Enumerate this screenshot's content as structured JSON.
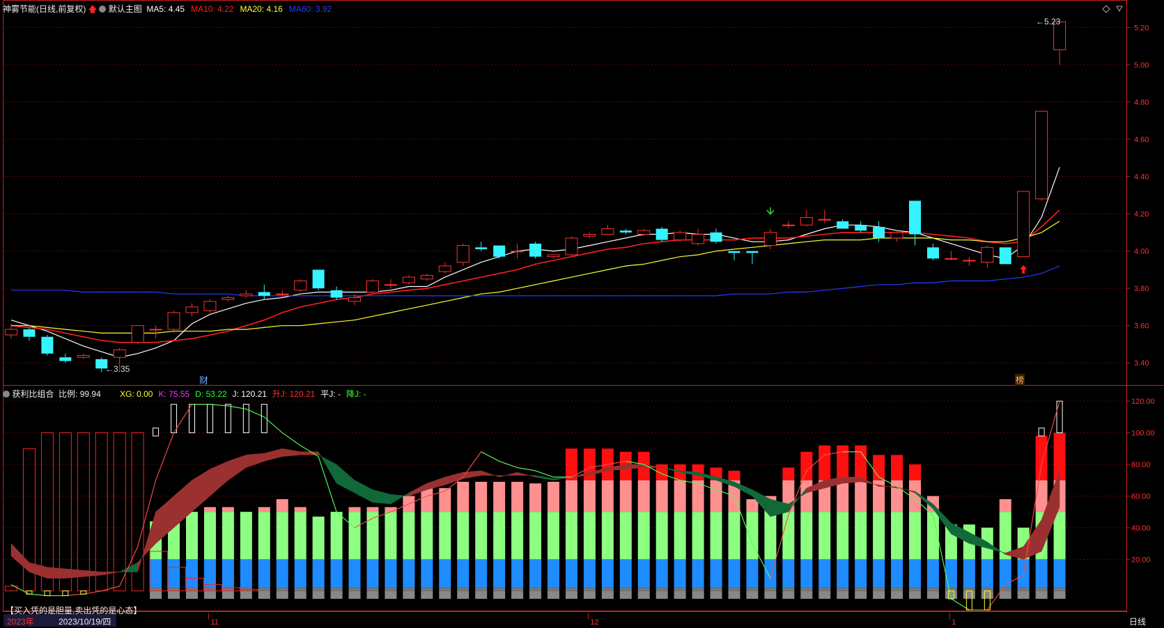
{
  "header": {
    "stock": "神雾节能",
    "period": "(日线,前复权)",
    "template": "默认主图",
    "ma": [
      {
        "label": "MA5:",
        "value": "4.45",
        "color": "#ffffff"
      },
      {
        "label": "MA10:",
        "value": "4.22",
        "color": "#ff2020"
      },
      {
        "label": "MA20:",
        "value": "4.16",
        "color": "#ffff30"
      },
      {
        "label": "MA60:",
        "value": "3.92",
        "color": "#2a3cff"
      }
    ]
  },
  "sub_header": {
    "title": "获利比组合",
    "ratio_label": "比例:",
    "ratio_value": "99.94",
    "items": [
      {
        "label": "XG:",
        "value": "0.00",
        "color": "#ffff30"
      },
      {
        "label": "K:",
        "value": "75.55",
        "color": "#ff30ff"
      },
      {
        "label": "D:",
        "value": "53.22",
        "color": "#30ff30"
      },
      {
        "label": "J:",
        "value": "120.21",
        "color": "#ffffff"
      },
      {
        "label": "升J:",
        "value": "120.21",
        "color": "#ff3030"
      },
      {
        "label": "平J:",
        "value": "-",
        "color": "#ffffff"
      },
      {
        "label": "降J:",
        "value": "-",
        "color": "#30ff30"
      }
    ]
  },
  "markers": {
    "cai": "财",
    "bang": "榜",
    "low_label": "3.35",
    "high_label": "5.23"
  },
  "footer": {
    "slogan": "【买入凭的是胆量,卖出凭的是心态】",
    "year": "2023年",
    "date": "2023/10/19/四",
    "months": [
      "11",
      "12",
      "1"
    ],
    "period_button": "日线"
  },
  "colors": {
    "up": "#ff3333",
    "down": "#35f3ff",
    "grid": "#5a0a0a",
    "axis": "#c82020"
  },
  "chart_data": [
    {
      "type": "candlestick",
      "title": "神雾节能 (日线,前复权)",
      "ylim": [
        3.3,
        5.28
      ],
      "y_ticks": [
        "3.40",
        "3.60",
        "3.80",
        "4.00",
        "4.20",
        "4.40",
        "4.60",
        "4.80",
        "5.00",
        "5.20"
      ],
      "candles": [
        [
          3.55,
          3.58,
          3.61,
          3.53
        ],
        [
          3.58,
          3.54,
          3.59,
          3.52
        ],
        [
          3.54,
          3.45,
          3.55,
          3.44
        ],
        [
          3.43,
          3.41,
          3.45,
          3.4
        ],
        [
          3.43,
          3.44,
          3.45,
          3.42
        ],
        [
          3.42,
          3.37,
          3.43,
          3.35
        ],
        [
          3.43,
          3.47,
          3.48,
          3.36
        ],
        [
          3.51,
          3.6,
          3.6,
          3.5
        ],
        [
          3.58,
          3.58,
          3.6,
          3.53
        ],
        [
          3.58,
          3.67,
          3.68,
          3.56
        ],
        [
          3.67,
          3.7,
          3.72,
          3.65
        ],
        [
          3.68,
          3.73,
          3.74,
          3.67
        ],
        [
          3.74,
          3.75,
          3.76,
          3.73
        ],
        [
          3.76,
          3.77,
          3.79,
          3.75
        ],
        [
          3.78,
          3.76,
          3.82,
          3.74
        ],
        [
          3.77,
          3.77,
          3.79,
          3.75
        ],
        [
          3.79,
          3.84,
          3.85,
          3.78
        ],
        [
          3.9,
          3.8,
          3.9,
          3.79
        ],
        [
          3.79,
          3.75,
          3.81,
          3.74
        ],
        [
          3.73,
          3.75,
          3.77,
          3.71
        ],
        [
          3.78,
          3.84,
          3.85,
          3.77
        ],
        [
          3.82,
          3.82,
          3.85,
          3.8
        ],
        [
          3.83,
          3.86,
          3.87,
          3.82
        ],
        [
          3.85,
          3.87,
          3.88,
          3.84
        ],
        [
          3.89,
          3.92,
          3.94,
          3.88
        ],
        [
          3.94,
          4.03,
          4.04,
          3.92
        ],
        [
          4.02,
          4.01,
          4.05,
          4.0
        ],
        [
          4.03,
          3.97,
          4.03,
          3.96
        ],
        [
          4.0,
          4.0,
          4.04,
          3.96
        ],
        [
          4.04,
          3.97,
          4.05,
          3.96
        ],
        [
          3.97,
          3.98,
          3.98,
          3.96
        ],
        [
          3.98,
          4.07,
          4.08,
          3.97
        ],
        [
          4.08,
          4.09,
          4.1,
          4.07
        ],
        [
          4.09,
          4.12,
          4.14,
          4.09
        ],
        [
          4.11,
          4.1,
          4.12,
          4.09
        ],
        [
          4.09,
          4.11,
          4.12,
          4.08
        ],
        [
          4.12,
          4.06,
          4.13,
          4.05
        ],
        [
          4.06,
          4.1,
          4.11,
          4.05
        ],
        [
          4.04,
          4.09,
          4.12,
          4.03
        ],
        [
          4.1,
          4.05,
          4.12,
          4.04
        ],
        [
          4.0,
          3.99,
          4.0,
          3.95
        ],
        [
          4.0,
          3.99,
          4.0,
          3.93
        ],
        [
          4.03,
          4.1,
          4.12,
          4.01
        ],
        [
          4.14,
          4.14,
          4.16,
          4.12
        ],
        [
          4.14,
          4.18,
          4.22,
          4.13
        ],
        [
          4.17,
          4.17,
          4.22,
          4.15
        ],
        [
          4.16,
          4.12,
          4.17,
          4.12
        ],
        [
          4.14,
          4.11,
          4.16,
          4.1
        ],
        [
          4.13,
          4.07,
          4.16,
          4.05
        ],
        [
          4.07,
          4.1,
          4.11,
          4.05
        ],
        [
          4.27,
          4.09,
          4.27,
          4.03
        ],
        [
          4.02,
          3.96,
          4.04,
          3.95
        ],
        [
          3.96,
          3.96,
          4.0,
          3.95
        ],
        [
          3.95,
          3.95,
          3.97,
          3.92
        ],
        [
          3.94,
          4.02,
          4.03,
          3.91
        ],
        [
          4.02,
          3.93,
          4.02,
          3.93
        ],
        [
          3.97,
          4.32,
          4.32,
          3.97
        ],
        [
          4.28,
          4.75,
          4.75,
          4.27
        ],
        [
          5.08,
          5.23,
          5.23,
          5.0
        ]
      ],
      "series": [
        {
          "name": "MA5",
          "values": [
            3.63,
            3.6,
            3.57,
            3.53,
            3.49,
            3.46,
            3.43,
            3.45,
            3.48,
            3.52,
            3.61,
            3.66,
            3.69,
            3.72,
            3.74,
            3.75,
            3.77,
            3.78,
            3.78,
            3.78,
            3.78,
            3.79,
            3.81,
            3.81,
            3.86,
            3.9,
            3.94,
            3.97,
            4.0,
            4.01,
            4.0,
            4.01,
            4.03,
            4.05,
            4.07,
            4.09,
            4.09,
            4.1,
            4.09,
            4.09,
            4.07,
            4.05,
            4.05,
            4.06,
            4.09,
            4.12,
            4.14,
            4.14,
            4.13,
            4.11,
            4.1,
            4.07,
            4.04,
            4.01,
            3.98,
            3.96,
            4.03,
            4.18,
            4.45
          ]
        },
        {
          "name": "MA10",
          "values": [
            3.6,
            3.59,
            3.58,
            3.56,
            3.54,
            3.52,
            3.51,
            3.51,
            3.51,
            3.52,
            3.53,
            3.55,
            3.57,
            3.6,
            3.63,
            3.67,
            3.7,
            3.72,
            3.74,
            3.75,
            3.77,
            3.78,
            3.79,
            3.8,
            3.82,
            3.84,
            3.86,
            3.88,
            3.9,
            3.93,
            3.95,
            3.97,
            3.99,
            4.01,
            4.02,
            4.04,
            4.05,
            4.06,
            4.06,
            4.06,
            4.06,
            4.07,
            4.07,
            4.07,
            4.08,
            4.09,
            4.1,
            4.1,
            4.1,
            4.1,
            4.1,
            4.09,
            4.08,
            4.07,
            4.05,
            4.04,
            4.05,
            4.13,
            4.22
          ]
        },
        {
          "name": "MA20",
          "values": [
            3.6,
            3.6,
            3.59,
            3.58,
            3.57,
            3.56,
            3.56,
            3.56,
            3.56,
            3.57,
            3.57,
            3.57,
            3.58,
            3.58,
            3.59,
            3.6,
            3.6,
            3.61,
            3.62,
            3.63,
            3.65,
            3.67,
            3.69,
            3.71,
            3.73,
            3.75,
            3.77,
            3.78,
            3.8,
            3.82,
            3.84,
            3.86,
            3.88,
            3.9,
            3.92,
            3.93,
            3.95,
            3.97,
            3.98,
            4.0,
            4.01,
            4.02,
            4.03,
            4.04,
            4.05,
            4.06,
            4.06,
            4.06,
            4.07,
            4.07,
            4.07,
            4.07,
            4.06,
            4.06,
            4.05,
            4.05,
            4.07,
            4.1,
            4.16
          ]
        },
        {
          "name": "MA60",
          "values": [
            3.79,
            3.79,
            3.79,
            3.79,
            3.78,
            3.78,
            3.78,
            3.78,
            3.78,
            3.77,
            3.77,
            3.77,
            3.77,
            3.76,
            3.76,
            3.76,
            3.76,
            3.76,
            3.76,
            3.76,
            3.76,
            3.76,
            3.76,
            3.76,
            3.76,
            3.76,
            3.76,
            3.76,
            3.76,
            3.76,
            3.76,
            3.76,
            3.76,
            3.76,
            3.76,
            3.76,
            3.76,
            3.76,
            3.76,
            3.76,
            3.77,
            3.77,
            3.77,
            3.78,
            3.78,
            3.79,
            3.8,
            3.81,
            3.82,
            3.82,
            3.83,
            3.83,
            3.84,
            3.84,
            3.84,
            3.85,
            3.86,
            3.88,
            3.92
          ]
        }
      ]
    },
    {
      "type": "bar",
      "title": "获利比组合",
      "ylim": [
        -12,
        128
      ],
      "y_ticks": [
        "20.00",
        "40.00",
        "60.00",
        "80.00",
        "100.00",
        "120.00"
      ],
      "profit_ratio": [
        3,
        90,
        100,
        100,
        100,
        100,
        100,
        100,
        44,
        46,
        50,
        53,
        53,
        50,
        53,
        58,
        53,
        47,
        50,
        53,
        53,
        53,
        60,
        65,
        65,
        69,
        69,
        69,
        69,
        68,
        69,
        90,
        90,
        90,
        88,
        88,
        80,
        80,
        80,
        78,
        76,
        58,
        60,
        78,
        88,
        92,
        92,
        92,
        86,
        86,
        80,
        60,
        42,
        42,
        40,
        58,
        40,
        98,
        100
      ],
      "top_boxes": [
        [
          8,
          98,
          103
        ],
        [
          9,
          100,
          118
        ],
        [
          10,
          100,
          118
        ],
        [
          11,
          100,
          118
        ],
        [
          12,
          100,
          118
        ],
        [
          13,
          100,
          118
        ],
        [
          14,
          100,
          118
        ],
        [
          57,
          98,
          103
        ],
        [
          58,
          100,
          120
        ]
      ],
      "k": [
        30,
        18,
        15,
        14,
        13,
        12,
        12,
        12,
        50,
        60,
        70,
        77,
        82,
        86,
        87,
        90,
        88,
        88,
        68,
        62,
        56,
        55,
        62,
        68,
        72,
        75,
        76,
        72,
        75,
        72,
        70,
        72,
        75,
        78,
        80,
        80,
        78,
        75,
        73,
        70,
        66,
        60,
        47,
        50,
        65,
        70,
        72,
        72,
        66,
        66,
        62,
        52,
        36,
        30,
        27,
        24,
        28,
        45,
        76
      ],
      "d": [
        22,
        12,
        8,
        8,
        9,
        10,
        12,
        18,
        30,
        40,
        50,
        60,
        70,
        78,
        82,
        85,
        86,
        86,
        80,
        70,
        64,
        61,
        60,
        64,
        67,
        71,
        73,
        73,
        73,
        73,
        71,
        72,
        73,
        76,
        77,
        78,
        78,
        76,
        75,
        72,
        69,
        64,
        58,
        55,
        62,
        65,
        68,
        69,
        67,
        65,
        63,
        55,
        43,
        37,
        31,
        23,
        20,
        25,
        53
      ],
      "j": [
        4,
        -2,
        -3,
        -3,
        -2,
        0,
        3,
        28,
        70,
        100,
        118,
        118,
        117,
        115,
        110,
        100,
        92,
        85,
        50,
        40,
        46,
        50,
        55,
        60,
        63,
        72,
        88,
        82,
        78,
        76,
        72,
        72,
        78,
        80,
        82,
        80,
        74,
        70,
        68,
        64,
        60,
        30,
        8,
        48,
        76,
        86,
        88,
        88,
        72,
        66,
        58,
        48,
        -5,
        -12,
        -12,
        4,
        10,
        80,
        120
      ]
    }
  ]
}
